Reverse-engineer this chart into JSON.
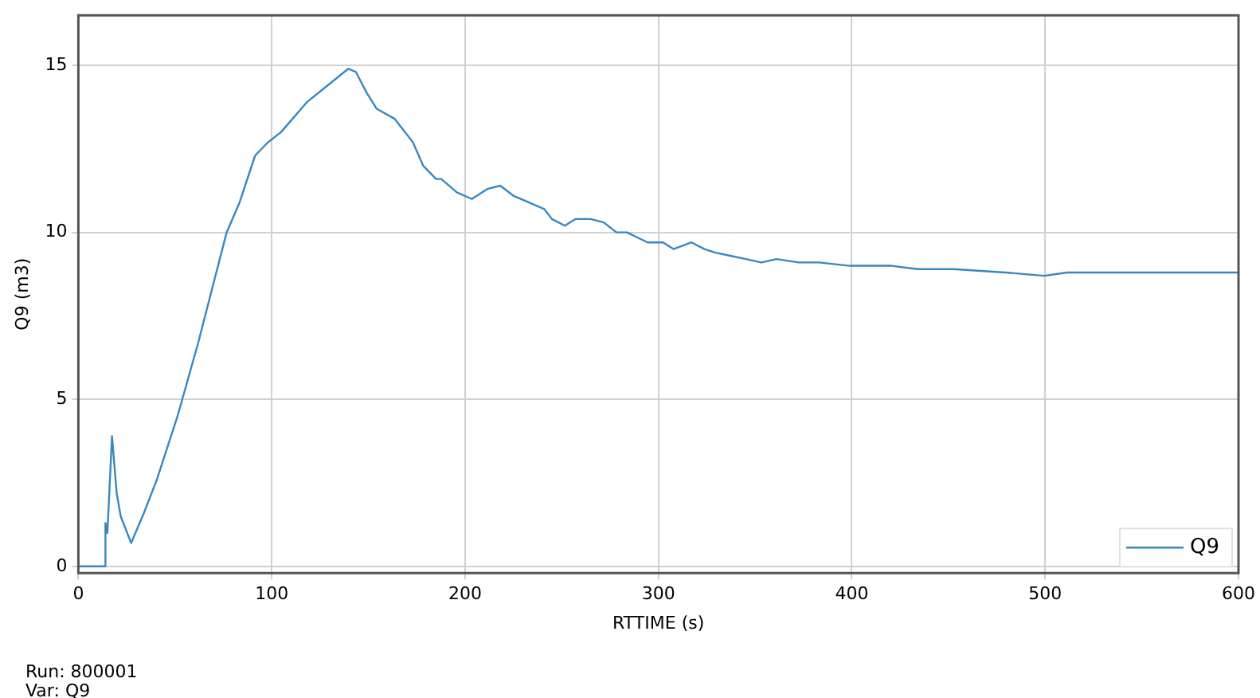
{
  "chart_data": {
    "type": "line",
    "xlabel": "RTTIME (s)",
    "ylabel": "Q9 (m3)",
    "x": [
      0,
      13.9,
      14,
      15,
      17.4,
      19.8,
      21.9,
      27.3,
      33.9,
      40.6,
      51.3,
      62,
      70,
      76.7,
      83.4,
      91.4,
      98.1,
      104.8,
      118.2,
      128.9,
      139.6,
      143.6,
      148.9,
      154.3,
      163.6,
      173,
      178.3,
      185,
      187.7,
      195.7,
      203.5,
      211.5,
      218.2,
      224.9,
      232.9,
      240.9,
      244.9,
      251.6,
      257,
      265,
      271.7,
      278.3,
      283.7,
      294.4,
      302.4,
      307.8,
      317.1,
      323.8,
      329.2,
      337.2,
      345.2,
      353.2,
      361.2,
      372.5,
      383,
      399,
      407,
      420.6,
      434,
      452.7,
      479.4,
      499.5,
      511.5,
      600
    ],
    "series": [
      {
        "name": "Q9",
        "color": "#3a87c0",
        "values": [
          0,
          0,
          1.3,
          1.0,
          3.9,
          2.2,
          1.5,
          0.7,
          1.6,
          2.6,
          4.5,
          6.7,
          8.5,
          10.0,
          10.9,
          12.3,
          12.7,
          13.0,
          13.9,
          14.4,
          14.9,
          14.8,
          14.2,
          13.7,
          13.4,
          12.7,
          12.0,
          11.6,
          11.6,
          11.2,
          11.0,
          11.3,
          11.4,
          11.1,
          10.9,
          10.7,
          10.4,
          10.2,
          10.4,
          10.4,
          10.3,
          10.0,
          10.0,
          9.7,
          9.7,
          9.5,
          9.7,
          9.5,
          9.4,
          9.3,
          9.2,
          9.1,
          9.2,
          9.1,
          9.1,
          9.0,
          9.0,
          9.0,
          8.9,
          8.9,
          8.8,
          8.7,
          8.8,
          8.8
        ]
      }
    ],
    "xlim": [
      0,
      600
    ],
    "xticks": [
      0,
      100,
      200,
      300,
      400,
      500,
      600
    ],
    "ylim": [
      -0.2,
      16.5
    ],
    "yticks": [
      0,
      5,
      10,
      15
    ],
    "grid": true,
    "legend": "bottom right",
    "marker": "none",
    "line_style": "solid",
    "annotations": [
      "Run: 800001",
      "Var: Q9"
    ]
  }
}
